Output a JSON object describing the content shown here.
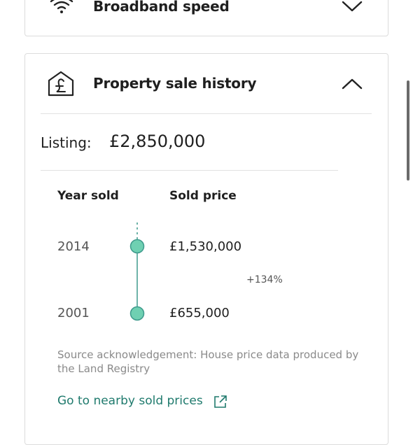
{
  "broadband": {
    "title": "Broadband speed"
  },
  "sale_history": {
    "title": "Property sale history",
    "listing_label": "Listing:",
    "listing_price": "£2,850,000",
    "headers": [
      "Year sold",
      "Sold price"
    ],
    "rows": [
      {
        "year": "2014",
        "price": "£1,530,000"
      },
      {
        "year": "2001",
        "price": "£655,000"
      }
    ],
    "change": "+134%",
    "source": "Source acknowledgement: House price data produced by the Land Registry",
    "link": "Go to nearby sold prices"
  }
}
